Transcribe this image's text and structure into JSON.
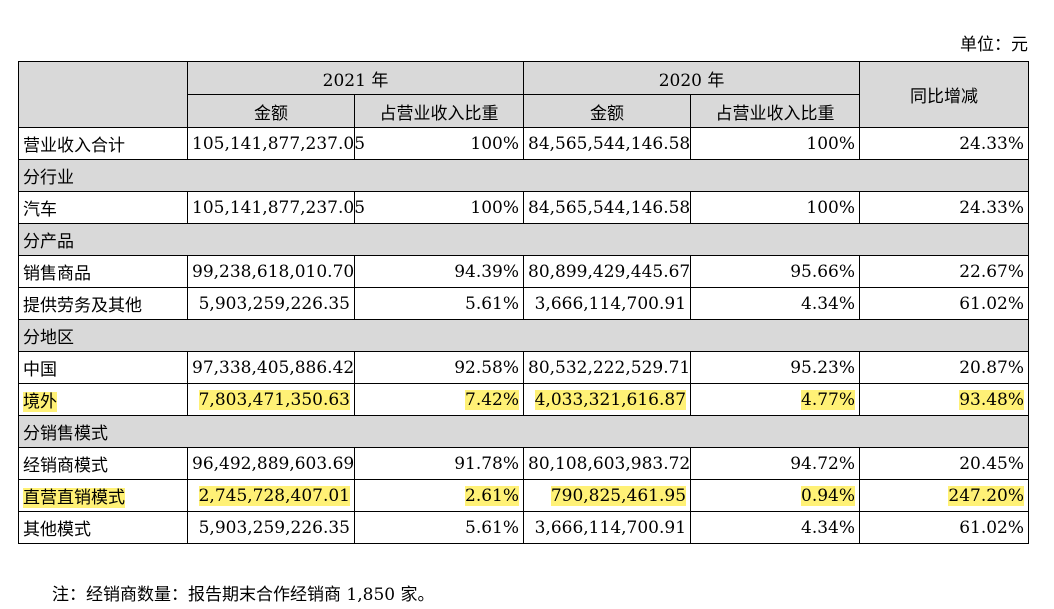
{
  "unit_label": "单位：元",
  "header": {
    "year_2021": "2021 年",
    "year_2020": "2020 年",
    "amount": "金额",
    "share": "占营业收入比重",
    "yoy": "同比增减"
  },
  "rows": [
    {
      "type": "data",
      "label": "营业收入合计",
      "a2021": "105,141,877,237.05",
      "s2021": "100%",
      "a2020": "84,565,544,146.58",
      "s2020": "100%",
      "yoy": "24.33%",
      "highlight": false
    },
    {
      "type": "section",
      "label": "分行业"
    },
    {
      "type": "data",
      "label": "汽车",
      "a2021": "105,141,877,237.05",
      "s2021": "100%",
      "a2020": "84,565,544,146.58",
      "s2020": "100%",
      "yoy": "24.33%",
      "highlight": false
    },
    {
      "type": "section",
      "label": "分产品"
    },
    {
      "type": "data",
      "label": "销售商品",
      "a2021": "99,238,618,010.70",
      "s2021": "94.39%",
      "a2020": "80,899,429,445.67",
      "s2020": "95.66%",
      "yoy": "22.67%",
      "highlight": false
    },
    {
      "type": "data",
      "label": "提供劳务及其他",
      "a2021": "5,903,259,226.35",
      "s2021": "5.61%",
      "a2020": "3,666,114,700.91",
      "s2020": "4.34%",
      "yoy": "61.02%",
      "highlight": false
    },
    {
      "type": "section",
      "label": "分地区"
    },
    {
      "type": "data",
      "label": "中国",
      "a2021": "97,338,405,886.42",
      "s2021": "92.58%",
      "a2020": "80,532,222,529.71",
      "s2020": "95.23%",
      "yoy": "20.87%",
      "highlight": false
    },
    {
      "type": "data",
      "label": "境外",
      "a2021": "7,803,471,350.63",
      "s2021": "7.42%",
      "a2020": "4,033,321,616.87",
      "s2020": "4.77%",
      "yoy": "93.48%",
      "highlight": true
    },
    {
      "type": "section",
      "label": "分销售模式"
    },
    {
      "type": "data",
      "label": "经销商模式",
      "a2021": "96,492,889,603.69",
      "s2021": "91.78%",
      "a2020": "80,108,603,983.72",
      "s2020": "94.72%",
      "yoy": "20.45%",
      "highlight": false
    },
    {
      "type": "data",
      "label": "直营直销模式",
      "a2021": "2,745,728,407.01",
      "s2021": "2.61%",
      "a2020": "790,825,461.95",
      "s2020": "0.94%",
      "yoy": "247.20%",
      "highlight": true
    },
    {
      "type": "data",
      "label": "其他模式",
      "a2021": "5,903,259,226.35",
      "s2021": "5.61%",
      "a2020": "3,666,114,700.91",
      "s2020": "4.34%",
      "yoy": "61.02%",
      "highlight": false
    }
  ],
  "footnote": "注：经销商数量：报告期末合作经销商 1,850 家。",
  "colors": {
    "header_bg": "#d9d9d9",
    "highlight": "#fff176"
  }
}
